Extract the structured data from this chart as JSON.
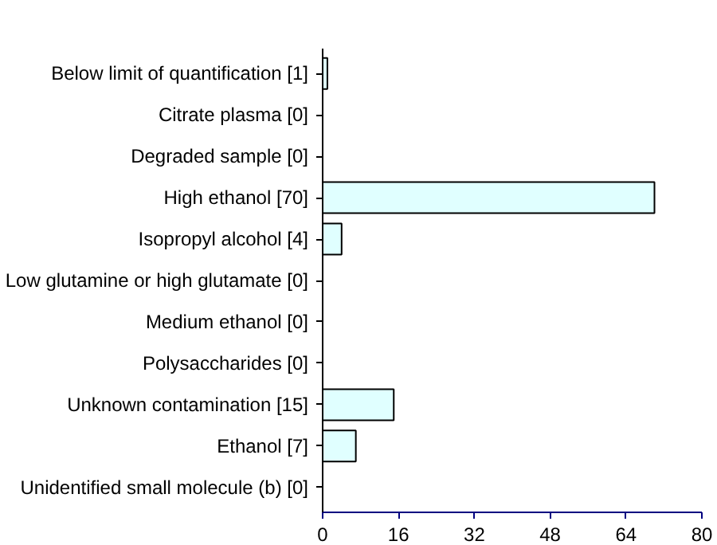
{
  "chart_data": {
    "type": "bar",
    "orientation": "horizontal",
    "categories": [
      "Below limit of quantification [1]",
      "Citrate plasma [0]",
      "Degraded sample [0]",
      "High ethanol [70]",
      "Isopropyl alcohol [4]",
      "Low glutamine or high glutamate [0]",
      "Medium ethanol [0]",
      "Polysaccharides [0]",
      "Unknown contamination [15]",
      "Ethanol [7]",
      "Unidentified small molecule (b) [0]"
    ],
    "values": [
      1,
      0,
      0,
      70,
      4,
      0,
      0,
      0,
      15,
      7,
      0
    ],
    "color": "#e0ffff",
    "xlim": [
      0,
      80
    ],
    "xticks": [
      0,
      16,
      32,
      48,
      64,
      80
    ],
    "grid": false
  }
}
